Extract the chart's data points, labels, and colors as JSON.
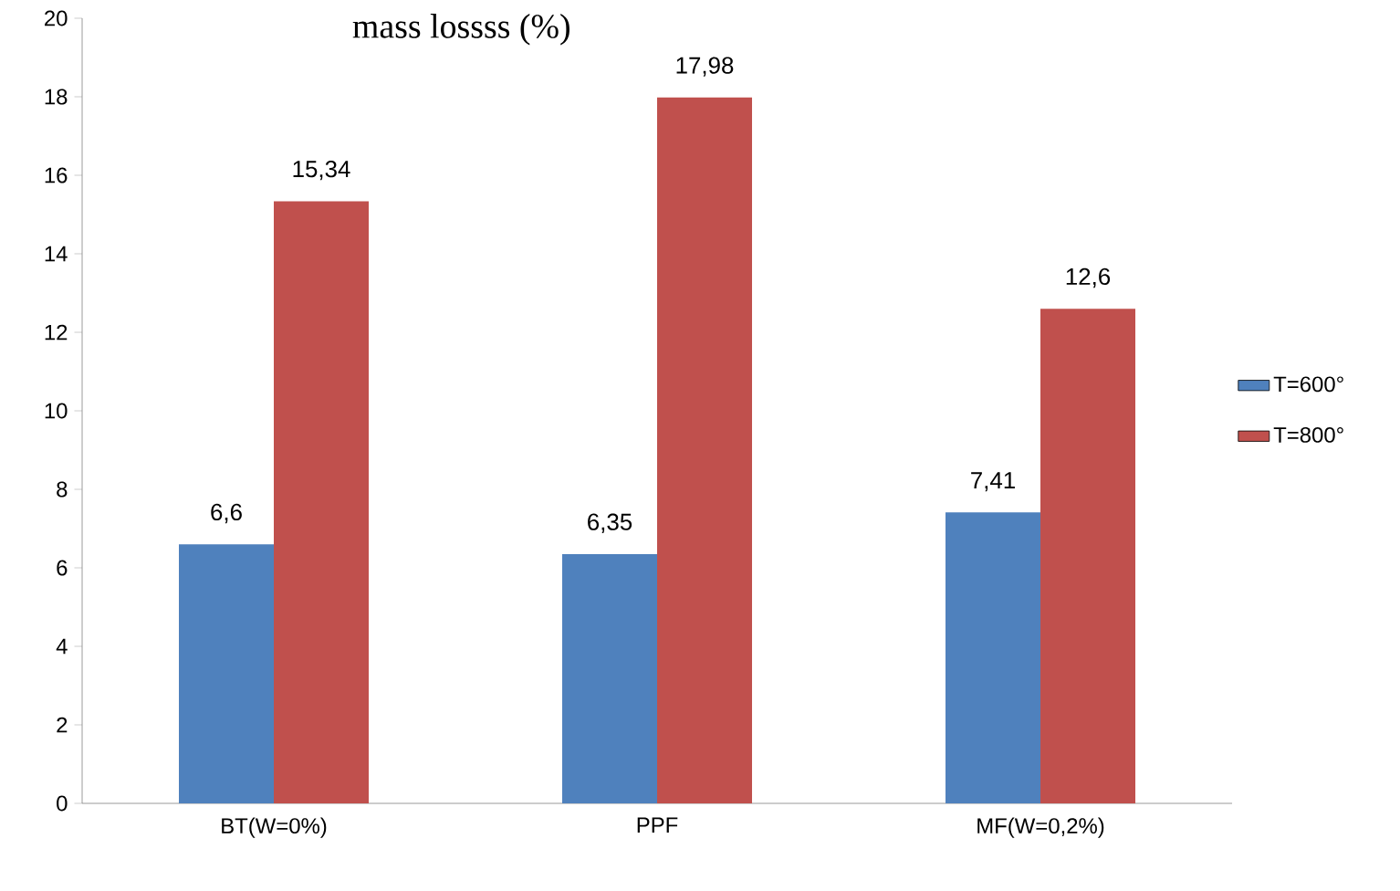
{
  "chart_data": {
    "type": "bar",
    "title": "mass lossss (%)",
    "categories": [
      "BT(W=0%)",
      "PPF",
      "MF(W=0,2%)"
    ],
    "series": [
      {
        "name": "T=600°",
        "color": "#4f81bd",
        "values": [
          6.6,
          6.35,
          7.41
        ],
        "value_labels": [
          "6,6",
          "6,35",
          "7,41"
        ]
      },
      {
        "name": "T=800°",
        "color": "#c0504d",
        "values": [
          15.34,
          17.98,
          12.6
        ],
        "value_labels": [
          "15,34",
          "17,98",
          "12,6"
        ]
      }
    ],
    "ylim": [
      0,
      20
    ],
    "yticks": [
      0,
      2,
      4,
      6,
      8,
      10,
      12,
      14,
      16,
      18,
      20
    ],
    "legend": "right"
  }
}
